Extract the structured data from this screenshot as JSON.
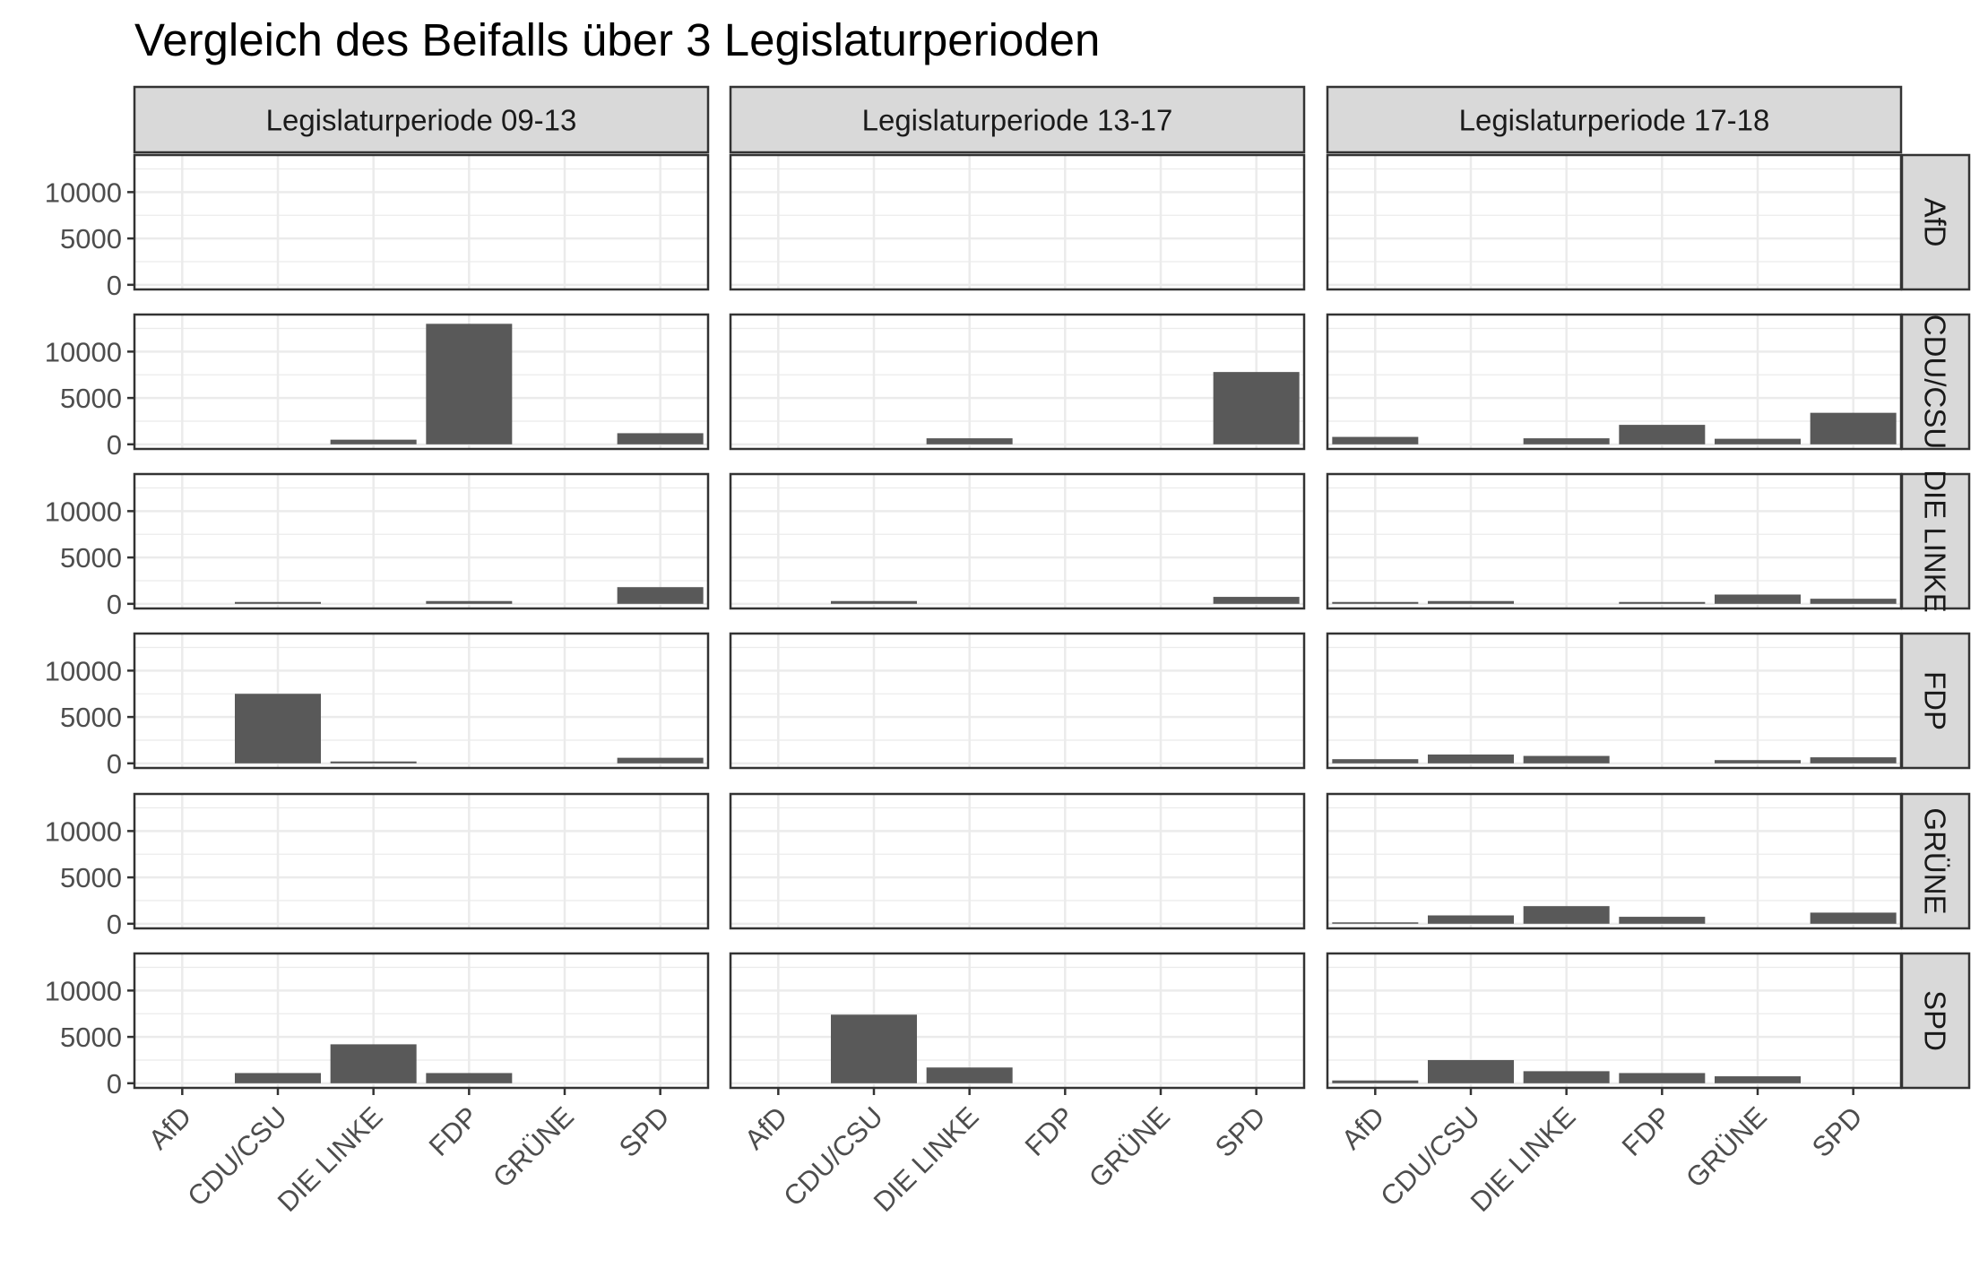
{
  "chart_data": {
    "type": "bar",
    "title": "Vergleich des Beifalls über 3 Legislaturperioden",
    "xlabel": "",
    "ylabel": "",
    "categories": [
      "AfD",
      "CDU/CSU",
      "DIE LINKE",
      "FDP",
      "GRÜNE",
      "SPD"
    ],
    "column_facets": [
      "Legislaturperiode 09-13",
      "Legislaturperiode 13-17",
      "Legislaturperiode 17-18"
    ],
    "row_facets": [
      "AfD",
      "CDU/CSU",
      "DIE LINKE",
      "FDP",
      "GRÜNE",
      "SPD"
    ],
    "y_ticks": [
      "0",
      "5000",
      "10000"
    ],
    "ylim": [
      -500,
      14000
    ],
    "grid": true,
    "bar_color": "#595959",
    "panels": [
      [
        {
          "values": [
            0,
            0,
            0,
            0,
            0,
            0
          ]
        },
        {
          "values": [
            0,
            0,
            0,
            0,
            0,
            0
          ]
        },
        {
          "values": [
            0,
            0,
            0,
            0,
            0,
            0
          ]
        }
      ],
      [
        {
          "values": [
            0,
            0,
            500,
            13000,
            0,
            1200
          ]
        },
        {
          "values": [
            0,
            0,
            650,
            0,
            0,
            7800
          ]
        },
        {
          "values": [
            800,
            0,
            650,
            2100,
            600,
            3400
          ]
        }
      ],
      [
        {
          "values": [
            0,
            200,
            0,
            300,
            0,
            1800
          ]
        },
        {
          "values": [
            0,
            300,
            0,
            0,
            0,
            750
          ]
        },
        {
          "values": [
            200,
            300,
            0,
            200,
            1000,
            550
          ]
        }
      ],
      [
        {
          "values": [
            0,
            7500,
            200,
            0,
            0,
            600
          ]
        },
        {
          "values": [
            0,
            0,
            0,
            0,
            0,
            0
          ]
        },
        {
          "values": [
            450,
            950,
            800,
            0,
            350,
            650
          ]
        }
      ],
      [
        {
          "values": [
            0,
            0,
            0,
            0,
            0,
            0
          ]
        },
        {
          "values": [
            0,
            0,
            0,
            0,
            0,
            0
          ]
        },
        {
          "values": [
            150,
            900,
            1900,
            750,
            0,
            1200
          ]
        }
      ],
      [
        {
          "values": [
            0,
            1100,
            4200,
            1100,
            0,
            0
          ]
        },
        {
          "values": [
            0,
            7400,
            1700,
            0,
            0,
            0
          ]
        },
        {
          "values": [
            300,
            2500,
            1300,
            1100,
            750,
            0
          ]
        }
      ]
    ]
  }
}
